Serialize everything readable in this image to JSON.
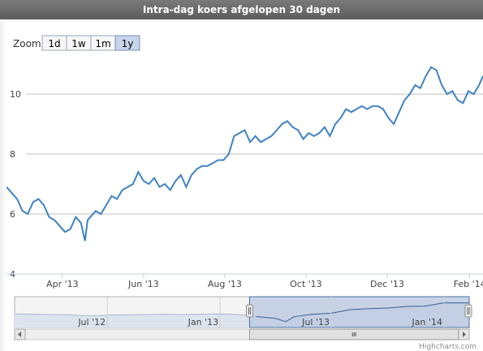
{
  "header": {
    "title": "Intra-dag koers afgelopen 30 dagen"
  },
  "zoom": {
    "label": "Zoom",
    "buttons": [
      "1d",
      "1w",
      "1m",
      "1y"
    ],
    "active": "1y"
  },
  "credits": "Highcharts.com",
  "colors": {
    "line": "#3f82c4",
    "navigator_fill": "#b8c8e0",
    "navigator_line": "#4a6fa5",
    "grid": "#c0c0c0",
    "header_bg": "#666666"
  },
  "chart_data": {
    "type": "line",
    "title": "Intra-dag koers afgelopen 30 dagen",
    "xlabel": "",
    "ylabel": "",
    "ylim": [
      4,
      11.3
    ],
    "yticks": [
      4,
      6,
      8,
      10
    ],
    "xlim": [
      "2013-02-18",
      "2014-02-11"
    ],
    "xticks": [
      {
        "date": "2013-04-01",
        "label": "Apr '13"
      },
      {
        "date": "2013-06-01",
        "label": "Jun '13"
      },
      {
        "date": "2013-08-01",
        "label": "Aug '13"
      },
      {
        "date": "2013-10-01",
        "label": "Oct '13"
      },
      {
        "date": "2013-12-01",
        "label": "Dec '13"
      },
      {
        "date": "2014-02-01",
        "label": "Feb '14"
      }
    ],
    "grid": true,
    "legend": "none",
    "series": [
      {
        "x": [
          "2013-02-18",
          "2013-02-22",
          "2013-02-26",
          "2013-03-02",
          "2013-03-06",
          "2013-03-10",
          "2013-03-14",
          "2013-03-18",
          "2013-03-22",
          "2013-03-26",
          "2013-03-30",
          "2013-04-03",
          "2013-04-07",
          "2013-04-11",
          "2013-04-15",
          "2013-04-18",
          "2013-04-20",
          "2013-04-22",
          "2013-04-26",
          "2013-04-30",
          "2013-05-04",
          "2013-05-08",
          "2013-05-12",
          "2013-05-16",
          "2013-05-20",
          "2013-05-24",
          "2013-05-28",
          "2013-06-01",
          "2013-06-05",
          "2013-06-09",
          "2013-06-13",
          "2013-06-17",
          "2013-06-21",
          "2013-06-25",
          "2013-06-29",
          "2013-07-03",
          "2013-07-07",
          "2013-07-11",
          "2013-07-15",
          "2013-07-19",
          "2013-07-23",
          "2013-07-27",
          "2013-07-31",
          "2013-08-04",
          "2013-08-08",
          "2013-08-12",
          "2013-08-16",
          "2013-08-20",
          "2013-08-24",
          "2013-08-28",
          "2013-09-01",
          "2013-09-05",
          "2013-09-09",
          "2013-09-13",
          "2013-09-17",
          "2013-09-21",
          "2013-09-25",
          "2013-09-29",
          "2013-10-03",
          "2013-10-07",
          "2013-10-11",
          "2013-10-15",
          "2013-10-19",
          "2013-10-23",
          "2013-10-27",
          "2013-10-31",
          "2013-11-04",
          "2013-11-08",
          "2013-11-12",
          "2013-11-16",
          "2013-11-20",
          "2013-11-24",
          "2013-11-28",
          "2013-12-02",
          "2013-12-06",
          "2013-12-10",
          "2013-12-14",
          "2013-12-18",
          "2013-12-22",
          "2013-12-26",
          "2013-12-30",
          "2014-01-03",
          "2014-01-07",
          "2014-01-11",
          "2014-01-15",
          "2014-01-19",
          "2014-01-23",
          "2014-01-27",
          "2014-01-31",
          "2014-02-04",
          "2014-02-08",
          "2014-02-11"
        ],
        "values": [
          6.9,
          6.7,
          6.5,
          6.1,
          6.0,
          6.4,
          6.5,
          6.3,
          5.9,
          5.8,
          5.6,
          5.4,
          5.5,
          5.9,
          5.7,
          5.1,
          5.8,
          5.9,
          6.1,
          6.0,
          6.3,
          6.6,
          6.5,
          6.8,
          6.9,
          7.0,
          7.4,
          7.1,
          7.0,
          7.2,
          6.9,
          7.0,
          6.8,
          7.1,
          7.3,
          6.9,
          7.3,
          7.5,
          7.6,
          7.6,
          7.7,
          7.8,
          7.8,
          8.0,
          8.6,
          8.7,
          8.8,
          8.4,
          8.6,
          8.4,
          8.5,
          8.6,
          8.8,
          9.0,
          9.1,
          8.9,
          8.8,
          8.5,
          8.7,
          8.6,
          8.7,
          8.9,
          8.6,
          9.0,
          9.2,
          9.5,
          9.4,
          9.5,
          9.6,
          9.5,
          9.6,
          9.6,
          9.5,
          9.2,
          9.0,
          9.4,
          9.8,
          10.0,
          10.3,
          10.2,
          10.6,
          10.9,
          10.8,
          10.3,
          10.0,
          10.1,
          9.8,
          9.7,
          10.1,
          10.0,
          10.3,
          10.6
        ]
      }
    ],
    "navigator": {
      "xticks": [
        {
          "date": "2012-07-01",
          "label": "Jul '12"
        },
        {
          "date": "2013-01-01",
          "label": "Jan '13"
        },
        {
          "date": "2013-07-01",
          "label": "Jul '13"
        },
        {
          "date": "2014-01-01",
          "label": "Jan '14"
        }
      ],
      "xlim": [
        "2012-02-01",
        "2014-02-11"
      ],
      "x": [
        "2012-02-01",
        "2012-03-01",
        "2012-04-01",
        "2012-05-01",
        "2012-06-01",
        "2012-07-01",
        "2012-08-01",
        "2012-09-01",
        "2012-10-01",
        "2012-11-01",
        "2012-12-01",
        "2013-01-01",
        "2013-02-01",
        "2013-03-01",
        "2013-04-01",
        "2013-04-18",
        "2013-05-01",
        "2013-06-01",
        "2013-07-01",
        "2013-08-01",
        "2013-09-01",
        "2013-10-01",
        "2013-11-01",
        "2013-12-01",
        "2014-01-01",
        "2014-02-11"
      ],
      "values": [
        7.2,
        7.1,
        7.0,
        6.9,
        6.6,
        6.8,
        6.9,
        7.0,
        7.1,
        7.0,
        7.1,
        7.2,
        7.0,
        6.4,
        5.8,
        4.8,
        6.3,
        7.1,
        7.4,
        8.5,
        8.8,
        9.0,
        9.5,
        9.6,
        10.6,
        10.6
      ]
    }
  }
}
